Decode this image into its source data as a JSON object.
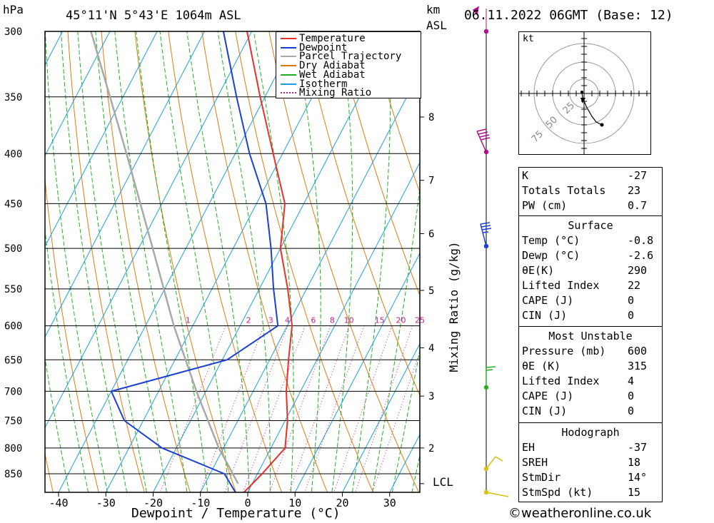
{
  "header": {
    "hpa_label": "hPa",
    "location": "45°11'N  5°43'E  1064m  ASL",
    "km_label": "km",
    "asl_label": "ASL",
    "datetime": "06.11.2022  06GMT  (Base: 12)"
  },
  "colors": {
    "temperature": "#e8302a",
    "dewpoint": "#1a3fd6",
    "parcel": "#a8a8a8",
    "dry_adiabat": "#e07a10",
    "wet_adiabat": "#1fb21f",
    "isotherm": "#1aa0e0",
    "mixing_ratio": "#c8208c"
  },
  "legend": [
    {
      "label": "Temperature",
      "color": "#e8302a",
      "style": "solid"
    },
    {
      "label": "Dewpoint",
      "color": "#1a3fd6",
      "style": "solid"
    },
    {
      "label": "Parcel Trajectory",
      "color": "#a8a8a8",
      "style": "solid"
    },
    {
      "label": "Dry Adiabat",
      "color": "#e07a10",
      "style": "solid"
    },
    {
      "label": "Wet Adiabat",
      "color": "#1fb21f",
      "style": "solid"
    },
    {
      "label": "Isotherm",
      "color": "#1aa0e0",
      "style": "solid"
    },
    {
      "label": "Mixing Ratio",
      "color": "#c8208c",
      "style": "dotted"
    }
  ],
  "chart_data": {
    "type": "skew-t",
    "xlabel": "Dewpoint / Temperature (°C)",
    "ylabel_left": "hPa",
    "ylabel_right": "Mixing Ratio (g/kg)",
    "x_ticks": [
      -40,
      -30,
      -20,
      -10,
      0,
      10,
      20,
      30
    ],
    "x_range": [
      -42,
      37
    ],
    "pressure_range": [
      300,
      888
    ],
    "pressure_levels": [
      300,
      350,
      400,
      450,
      500,
      550,
      600,
      650,
      700,
      750,
      800,
      850
    ],
    "km_ticks": [
      {
        "km": 2,
        "p": 800
      },
      {
        "km": 3,
        "p": 708
      },
      {
        "km": 4,
        "p": 632
      },
      {
        "km": 5,
        "p": 552
      },
      {
        "km": 6,
        "p": 483
      },
      {
        "km": 7,
        "p": 426
      },
      {
        "km": 8,
        "p": 367
      }
    ],
    "lcl": {
      "label": "LCL",
      "p": 870
    },
    "mixing_ratio_labels": [
      "1",
      "2",
      "3",
      "4",
      "6",
      "8",
      "10",
      "15",
      "20",
      "25"
    ],
    "mixing_ratio_label_temps": [
      -31,
      -18.2,
      -13.5,
      -10,
      -4.5,
      -0.5,
      3,
      9.5,
      14,
      18
    ],
    "temperature": [
      {
        "p": 888,
        "t": -0.8
      },
      {
        "p": 850,
        "t": 1
      },
      {
        "p": 800,
        "t": 3
      },
      {
        "p": 750,
        "t": 0.5
      },
      {
        "p": 700,
        "t": -3
      },
      {
        "p": 650,
        "t": -6
      },
      {
        "p": 600,
        "t": -9
      },
      {
        "p": 550,
        "t": -14
      },
      {
        "p": 500,
        "t": -20
      },
      {
        "p": 450,
        "t": -24
      },
      {
        "p": 400,
        "t": -32
      },
      {
        "p": 350,
        "t": -41
      },
      {
        "p": 300,
        "t": -51
      }
    ],
    "dewpoint": [
      {
        "p": 888,
        "t": -2.6
      },
      {
        "p": 850,
        "t": -7
      },
      {
        "p": 800,
        "t": -23
      },
      {
        "p": 750,
        "t": -34
      },
      {
        "p": 700,
        "t": -40
      },
      {
        "p": 650,
        "t": -19
      },
      {
        "p": 600,
        "t": -12
      },
      {
        "p": 550,
        "t": -17
      },
      {
        "p": 500,
        "t": -22
      },
      {
        "p": 450,
        "t": -28
      },
      {
        "p": 400,
        "t": -37
      },
      {
        "p": 350,
        "t": -46
      },
      {
        "p": 300,
        "t": -56
      }
    ],
    "parcel": [
      {
        "p": 870,
        "t": -3
      },
      {
        "p": 800,
        "t": -11
      },
      {
        "p": 700,
        "t": -22
      },
      {
        "p": 600,
        "t": -34
      },
      {
        "p": 500,
        "t": -47
      },
      {
        "p": 400,
        "t": -63
      },
      {
        "p": 300,
        "t": -84
      }
    ]
  },
  "hodograph": {
    "unit_label": "kt",
    "ring_labels": [
      "25",
      "50",
      "75"
    ]
  },
  "indices_top": [
    {
      "label": "K",
      "value": "-27"
    },
    {
      "label": "Totals Totals",
      "value": "23"
    },
    {
      "label": "PW (cm)",
      "value": "0.7"
    }
  ],
  "surface": {
    "title": "Surface",
    "rows": [
      {
        "label": "Temp (°C)",
        "value": "-0.8"
      },
      {
        "label": "Dewp (°C)",
        "value": "-2.6"
      },
      {
        "label": "θE(K)",
        "value": "290"
      },
      {
        "label": "Lifted Index",
        "value": "22"
      },
      {
        "label": "CAPE (J)",
        "value": "0"
      },
      {
        "label": "CIN (J)",
        "value": "0"
      }
    ]
  },
  "most_unstable": {
    "title": "Most Unstable",
    "rows": [
      {
        "label": "Pressure (mb)",
        "value": "600"
      },
      {
        "label": "θE (K)",
        "value": "315"
      },
      {
        "label": "Lifted Index",
        "value": "4"
      },
      {
        "label": "CAPE (J)",
        "value": "0"
      },
      {
        "label": "CIN (J)",
        "value": "0"
      }
    ]
  },
  "hodograph_stats": {
    "title": "Hodograph",
    "rows": [
      {
        "label": "EH",
        "value": "-37"
      },
      {
        "label": "SREH",
        "value": "18"
      },
      {
        "label": "StmDir",
        "value": "14°"
      },
      {
        "label": "StmSpd (kt)",
        "value": "15"
      }
    ]
  },
  "footer": {
    "copyright": "©weatheronline.co.uk"
  }
}
